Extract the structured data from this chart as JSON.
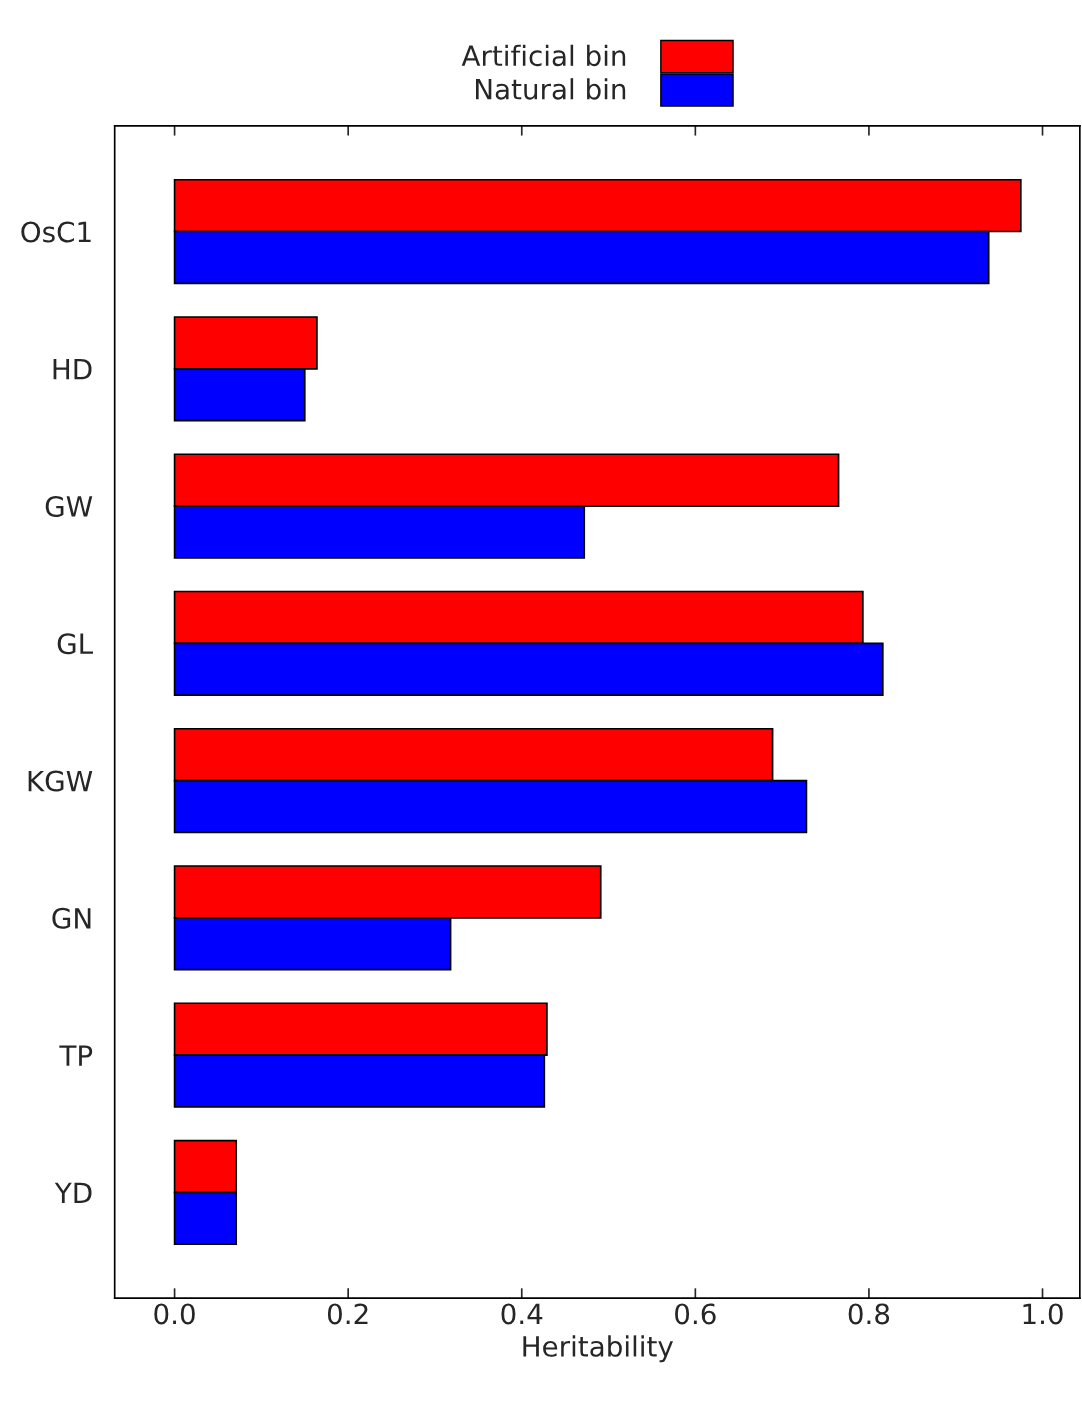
{
  "chart_data": {
    "type": "bar",
    "orientation": "horizontal",
    "xlabel": "Heritability",
    "categories": [
      "OsC1",
      "HD",
      "GW",
      "GL",
      "KGW",
      "GN",
      "TP",
      "YD"
    ],
    "series": [
      {
        "name": "Artificial bin",
        "color": "#ff0000",
        "values": [
          0.975,
          0.164,
          0.765,
          0.793,
          0.689,
          0.491,
          0.429,
          0.071
        ]
      },
      {
        "name": "Natural bin",
        "color": "#0000ff",
        "values": [
          0.938,
          0.15,
          0.472,
          0.816,
          0.728,
          0.318,
          0.426,
          0.071
        ]
      }
    ],
    "xlim": [
      -0.069,
      1.043
    ],
    "xticks": [
      {
        "value": 0,
        "label": "0.0"
      },
      {
        "value": 0.2,
        "label": "0.2"
      },
      {
        "value": 0.4,
        "label": "0.4"
      },
      {
        "value": 0.6,
        "label": "0.6"
      },
      {
        "value": 0.8,
        "label": "0.8"
      },
      {
        "value": 1.0,
        "label": "1.0"
      }
    ],
    "legend": "top",
    "grid": false
  }
}
